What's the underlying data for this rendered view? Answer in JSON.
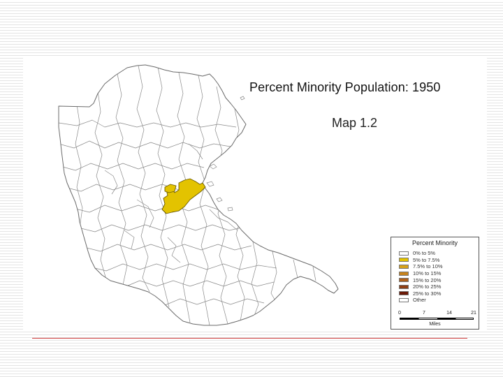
{
  "slide": {
    "title": "Percent Minority Population:  1950",
    "subtitle": "Map 1.2"
  },
  "legend": {
    "title": "Percent Minority",
    "items": [
      {
        "label": "0% to 5%",
        "color": "#ffffff"
      },
      {
        "label": "5% to 7.5%",
        "color": "#e3c300"
      },
      {
        "label": "7.5% to 10%",
        "color": "#d7a21a"
      },
      {
        "label": "10% to 15%",
        "color": "#c7831c"
      },
      {
        "label": "15% to 20%",
        "color": "#b0621c"
      },
      {
        "label": "20% to 25%",
        "color": "#8f3f14"
      },
      {
        "label": "25% to 30%",
        "color": "#6b1a08"
      },
      {
        "label": "Other",
        "color": "#ffffff"
      }
    ]
  },
  "scale": {
    "ticks": [
      "0",
      "7",
      "14",
      "21"
    ],
    "unit": "Miles"
  },
  "colors": {
    "highlight": "#e3c300",
    "boundary": "#8a8a8a",
    "footer_rule": "#d04040"
  }
}
